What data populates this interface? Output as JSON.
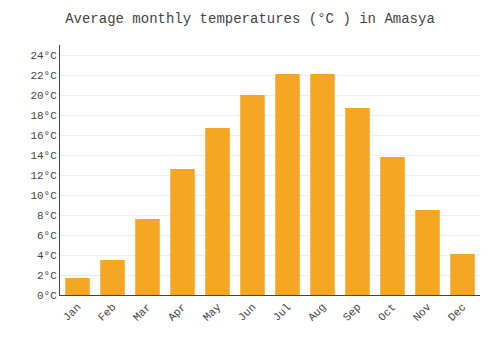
{
  "chart_data": {
    "type": "bar",
    "title": "Average monthly temperatures (°C ) in Amasya",
    "categories": [
      "Jan",
      "Feb",
      "Mar",
      "Apr",
      "May",
      "Jun",
      "Jul",
      "Aug",
      "Sep",
      "Oct",
      "Nov",
      "Dec"
    ],
    "values": [
      1.7,
      3.5,
      7.6,
      12.6,
      16.7,
      20.0,
      22.1,
      22.1,
      18.7,
      13.8,
      8.5,
      4.1
    ],
    "color": "#F5A623",
    "ylim": [
      0,
      25
    ],
    "yticks": [
      {
        "value": 0,
        "label": "0°C"
      },
      {
        "value": 2,
        "label": "2°C"
      },
      {
        "value": 4,
        "label": "4°C"
      },
      {
        "value": 6,
        "label": "6°C"
      },
      {
        "value": 8,
        "label": "8°C"
      },
      {
        "value": 10,
        "label": "10°C"
      },
      {
        "value": 12,
        "label": "12°C"
      },
      {
        "value": 14,
        "label": "14°C"
      },
      {
        "value": 16,
        "label": "16°C"
      },
      {
        "value": 18,
        "label": "18°C"
      },
      {
        "value": 20,
        "label": "20°C"
      },
      {
        "value": 22,
        "label": "22°C"
      },
      {
        "value": 24,
        "label": "24°C"
      }
    ],
    "grid": true
  }
}
